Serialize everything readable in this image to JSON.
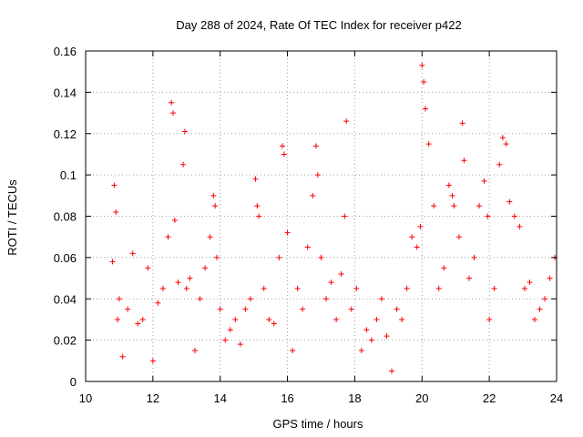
{
  "chart_data": {
    "type": "scatter",
    "title": "Day 288 of 2024, Rate Of TEC Index for receiver p422",
    "xlabel": "GPS time / hours",
    "ylabel": "ROTI / TECUs",
    "xlim": [
      10,
      24
    ],
    "ylim": [
      0,
      0.16
    ],
    "grid": true,
    "marker": "+",
    "color": "#ff0000",
    "x_ticks": [
      10,
      12,
      14,
      16,
      18,
      20,
      22,
      24
    ],
    "x_tick_labels": [
      "10",
      "12",
      "14",
      "16",
      "18",
      "20",
      "22",
      "24"
    ],
    "y_ticks": [
      0,
      0.02,
      0.04,
      0.06,
      0.08,
      0.1,
      0.12,
      0.14,
      0.16
    ],
    "y_tick_labels": [
      "0",
      "0.02",
      "0.04",
      "0.06",
      "0.08",
      "0.1",
      "0.12",
      "0.14",
      "0.16"
    ],
    "series": [
      {
        "name": "ROTI",
        "x": [
          10.8,
          10.85,
          10.9,
          10.95,
          11.0,
          11.1,
          11.25,
          11.4,
          11.55,
          11.7,
          11.85,
          12.0,
          12.15,
          12.3,
          12.45,
          12.55,
          12.6,
          12.65,
          12.75,
          12.9,
          12.95,
          13.0,
          13.1,
          13.25,
          13.4,
          13.55,
          13.7,
          13.8,
          13.85,
          13.9,
          14.0,
          14.15,
          14.3,
          14.45,
          14.6,
          14.75,
          14.9,
          15.05,
          15.1,
          15.15,
          15.3,
          15.45,
          15.6,
          15.75,
          15.85,
          15.9,
          16.0,
          16.15,
          16.3,
          16.45,
          16.6,
          16.75,
          16.85,
          16.9,
          17.0,
          17.15,
          17.3,
          17.45,
          17.6,
          17.7,
          17.75,
          17.9,
          18.05,
          18.2,
          18.35,
          18.5,
          18.65,
          18.8,
          18.95,
          19.1,
          19.25,
          19.4,
          19.55,
          19.7,
          19.85,
          19.95,
          20.0,
          20.05,
          20.1,
          20.2,
          20.35,
          20.5,
          20.65,
          20.8,
          20.9,
          20.95,
          21.1,
          21.2,
          21.25,
          21.4,
          21.55,
          21.7,
          21.85,
          21.95,
          22.0,
          22.15,
          22.3,
          22.4,
          22.5,
          22.6,
          22.75,
          22.9,
          23.05,
          23.2,
          23.35,
          23.5,
          23.65,
          23.8,
          23.95
        ],
        "y": [
          0.058,
          0.095,
          0.082,
          0.03,
          0.04,
          0.012,
          0.035,
          0.062,
          0.028,
          0.03,
          0.055,
          0.01,
          0.038,
          0.045,
          0.07,
          0.135,
          0.13,
          0.078,
          0.048,
          0.105,
          0.121,
          0.045,
          0.05,
          0.015,
          0.04,
          0.055,
          0.07,
          0.09,
          0.085,
          0.06,
          0.035,
          0.02,
          0.025,
          0.03,
          0.018,
          0.035,
          0.04,
          0.098,
          0.085,
          0.08,
          0.045,
          0.03,
          0.028,
          0.06,
          0.114,
          0.11,
          0.072,
          0.015,
          0.045,
          0.035,
          0.065,
          0.09,
          0.114,
          0.1,
          0.06,
          0.04,
          0.048,
          0.03,
          0.052,
          0.08,
          0.126,
          0.035,
          0.045,
          0.015,
          0.025,
          0.02,
          0.03,
          0.04,
          0.022,
          0.005,
          0.035,
          0.03,
          0.045,
          0.07,
          0.065,
          0.075,
          0.153,
          0.145,
          0.132,
          0.115,
          0.085,
          0.045,
          0.055,
          0.095,
          0.09,
          0.085,
          0.07,
          0.125,
          0.107,
          0.05,
          0.06,
          0.085,
          0.097,
          0.08,
          0.03,
          0.045,
          0.105,
          0.118,
          0.115,
          0.087,
          0.08,
          0.075,
          0.045,
          0.048,
          0.03,
          0.035,
          0.04,
          0.05,
          0.06
        ]
      }
    ]
  }
}
